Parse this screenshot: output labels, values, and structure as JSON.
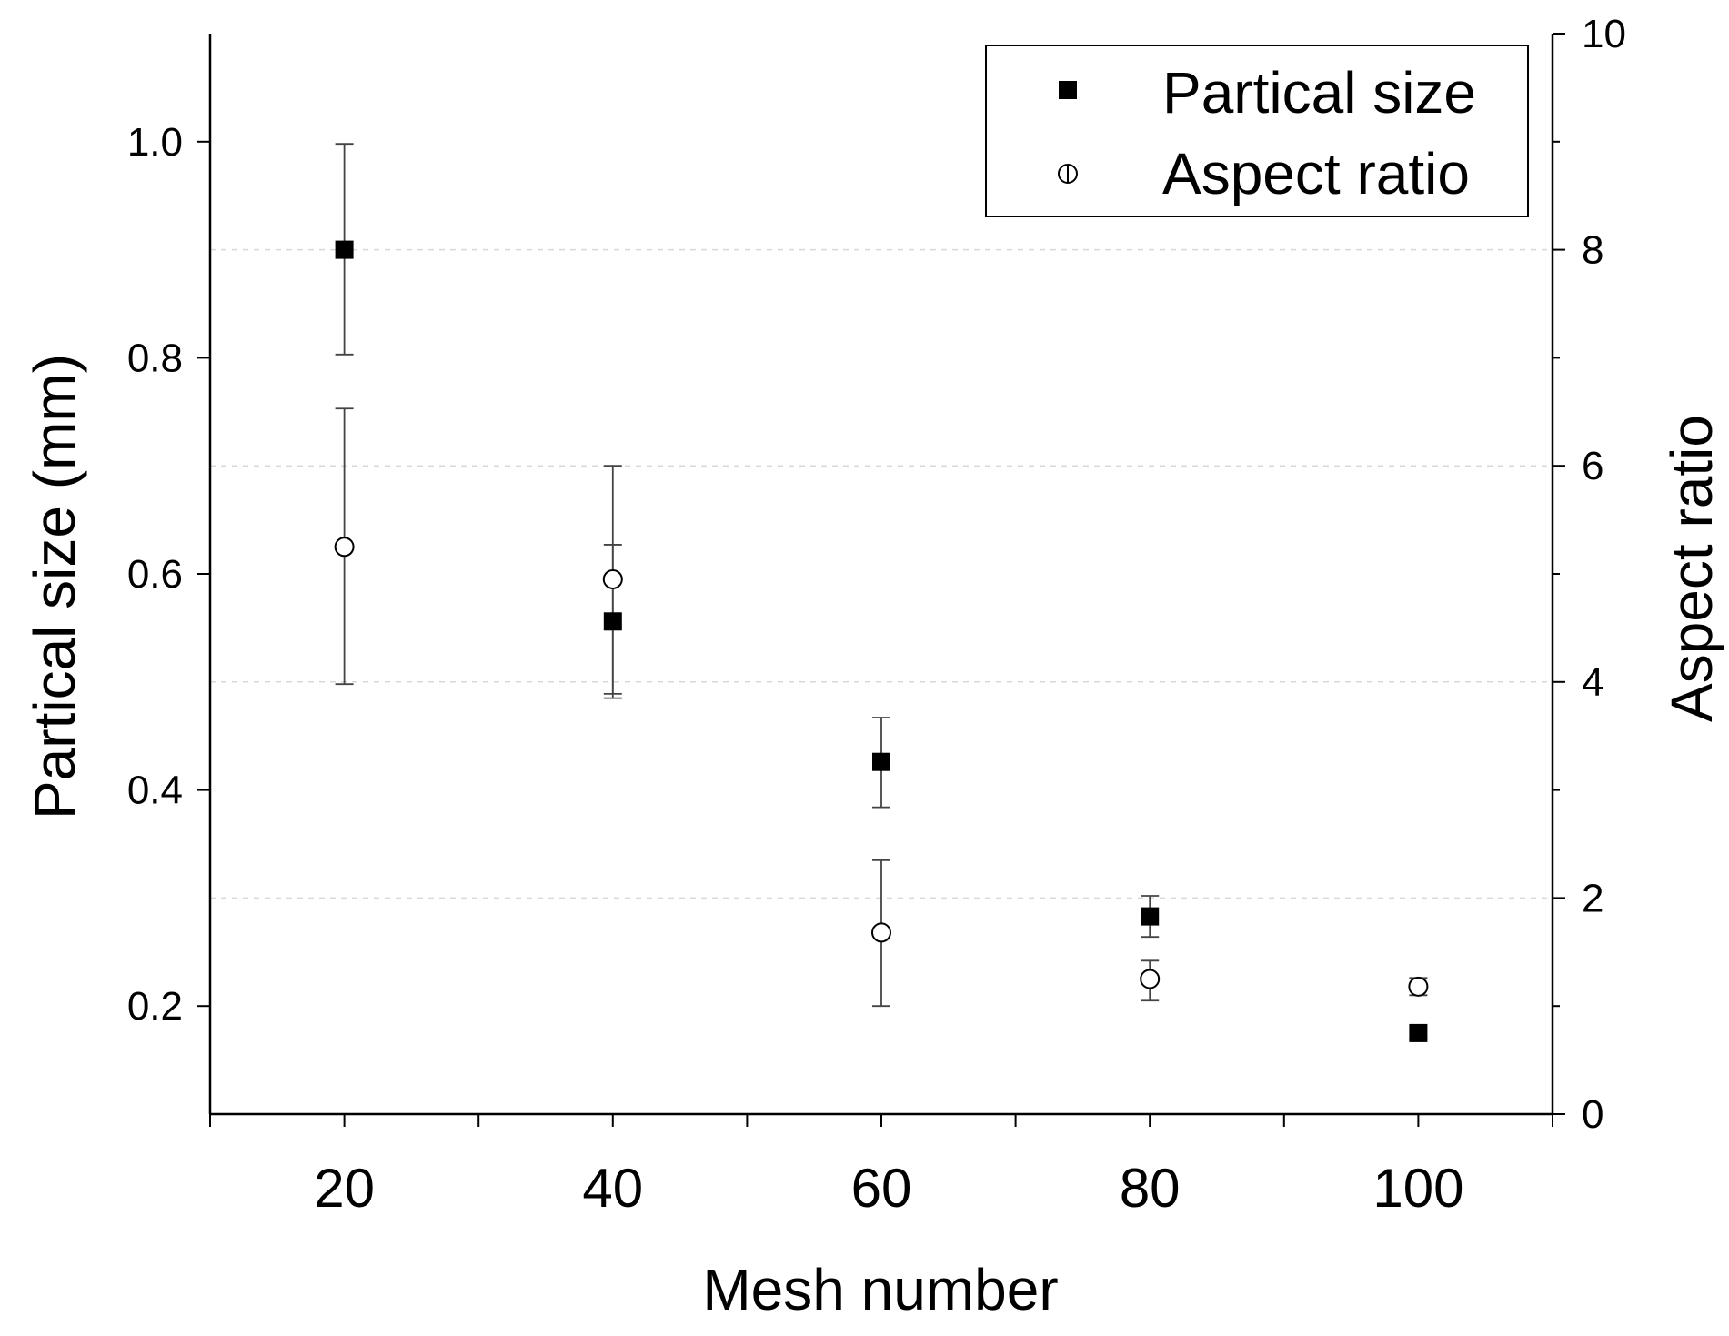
{
  "chart_data": {
    "type": "scatter",
    "xlabel": "Mesh number",
    "ylabel": "Partical size (mm)",
    "y2label": "Aspect ratio",
    "xlim": [
      10,
      110
    ],
    "ylim": [
      0.1,
      1.1
    ],
    "y2lim": [
      0,
      10
    ],
    "x_ticks": [
      20,
      40,
      60,
      80,
      100
    ],
    "x_minor_ticks": [
      10,
      30,
      50,
      70,
      90,
      110
    ],
    "y_ticks": [
      0.2,
      0.4,
      0.6,
      0.8,
      1.0
    ],
    "y_tick_labels": [
      "0.2",
      "0.4",
      "0.6",
      "0.8",
      "1.0"
    ],
    "y2_ticks": [
      0,
      2,
      4,
      6,
      8,
      10
    ],
    "gridlines_y": [
      0.3,
      0.5,
      0.7,
      0.9
    ],
    "legend_position": "top-right",
    "series": [
      {
        "name": "Partical size",
        "axis": "left",
        "marker": "filled-square",
        "x": [
          20,
          40,
          60,
          80,
          100
        ],
        "y": [
          0.9,
          0.556,
          0.426,
          0.283,
          0.175
        ],
        "err_low": [
          0.803,
          0.489,
          0.384,
          0.264,
          0.17
        ],
        "err_high": [
          0.998,
          0.627,
          0.467,
          0.302,
          0.178
        ]
      },
      {
        "name": "Aspect ratio",
        "axis": "right",
        "marker": "open-circle",
        "x": [
          20,
          40,
          60,
          80,
          100
        ],
        "y": [
          5.25,
          4.95,
          1.68,
          1.25,
          1.18
        ],
        "err_low": [
          3.98,
          3.85,
          1.0,
          1.05,
          1.1
        ],
        "err_high": [
          6.53,
          6.0,
          2.35,
          1.42,
          1.26
        ]
      }
    ]
  }
}
